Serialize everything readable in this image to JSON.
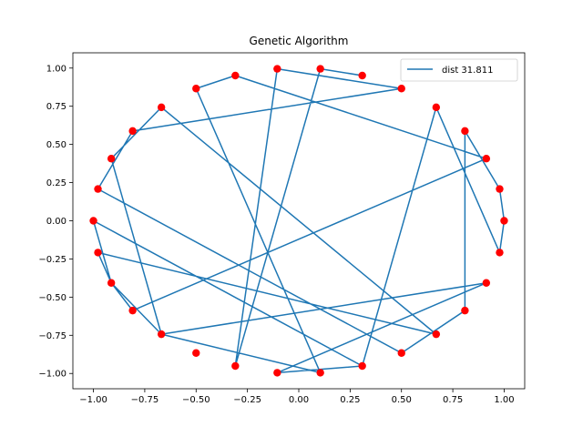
{
  "chart_data": {
    "type": "scatter",
    "title": "Genetic Algorithm",
    "xlabel": "",
    "ylabel": "",
    "xlim": [
      -1.1,
      1.1
    ],
    "ylim": [
      -1.1,
      1.1
    ],
    "xticks": [
      -1.0,
      -0.75,
      -0.5,
      -0.25,
      0.0,
      0.25,
      0.5,
      0.75,
      1.0
    ],
    "yticks": [
      -1.0,
      -0.75,
      -0.5,
      -0.25,
      0.0,
      0.25,
      0.5,
      0.75,
      1.0
    ],
    "xtick_labels": [
      "−1.00",
      "−0.75",
      "−0.50",
      "−0.25",
      "0.00",
      "0.25",
      "0.50",
      "0.75",
      "1.00"
    ],
    "ytick_labels": [
      "−1.00",
      "−0.75",
      "−0.50",
      "−0.25",
      "0.00",
      "0.25",
      "0.50",
      "0.75",
      "1.00"
    ],
    "grid": false,
    "legend_position": "top-right",
    "series": [
      {
        "name": "dist 31.811",
        "kind": "line",
        "color": "#1f77b4",
        "x": [
          0.309,
          0.105,
          -0.309,
          -0.105,
          0.5,
          -0.809,
          -0.978,
          0.5,
          0.809,
          0.809,
          0.978,
          1.0,
          0.978,
          0.669,
          0.309,
          -0.105,
          0.913,
          -0.669,
          -0.913,
          -0.669,
          0.669,
          -0.978,
          -0.913,
          -0.809,
          0.913,
          -0.309,
          -0.5,
          0.105,
          -0.669,
          -0.913,
          -1.0,
          0.309
        ],
        "y": [
          0.951,
          0.995,
          -0.951,
          0.995,
          0.866,
          0.588,
          0.208,
          -0.866,
          -0.588,
          0.588,
          0.208,
          0.0,
          -0.208,
          0.743,
          -0.951,
          -0.995,
          -0.407,
          -0.743,
          0.407,
          0.743,
          -0.743,
          -0.208,
          -0.407,
          -0.588,
          0.407,
          0.951,
          0.866,
          -0.995,
          -0.743,
          -0.407,
          0.0,
          -0.951
        ]
      },
      {
        "name": "",
        "kind": "scatter",
        "color": "#ff0000",
        "x": [
          1.0,
          0.978,
          0.913,
          0.809,
          0.669,
          0.5,
          0.309,
          0.105,
          -0.105,
          -0.309,
          -0.5,
          -0.669,
          -0.809,
          -0.913,
          -0.978,
          -1.0,
          -0.978,
          -0.913,
          -0.809,
          -0.669,
          -0.5,
          -0.309,
          -0.105,
          0.105,
          0.309,
          0.5,
          0.669,
          0.809,
          0.913,
          0.978
        ],
        "y": [
          0.0,
          0.208,
          0.407,
          0.588,
          0.743,
          0.866,
          0.951,
          0.995,
          0.995,
          0.951,
          0.866,
          0.743,
          0.588,
          0.407,
          0.208,
          0.0,
          -0.208,
          -0.407,
          -0.588,
          -0.743,
          -0.866,
          -0.951,
          -0.995,
          -0.995,
          -0.951,
          -0.866,
          -0.743,
          -0.588,
          -0.407,
          -0.208
        ]
      }
    ]
  }
}
